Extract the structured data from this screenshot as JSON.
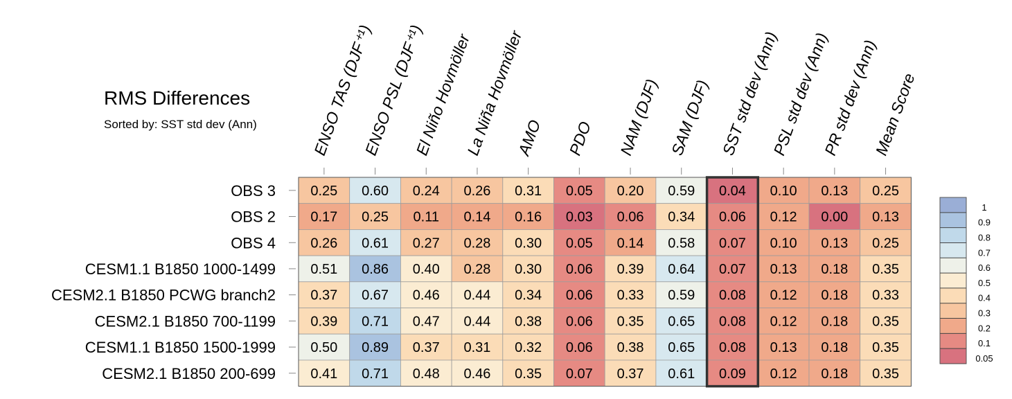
{
  "chart_data": {
    "type": "heatmap",
    "title": "RMS Differences",
    "subtitle": "Sorted by: SST std dev (Ann)",
    "columns": [
      "ENSO TAS (DJF⁺¹)",
      "ENSO PSL (DJF⁺¹)",
      "El Niño Hovmöller",
      "La Niña Hovmöller",
      "AMO",
      "PDO",
      "NAM (DJF)",
      "SAM (DJF)",
      "SST std dev (Ann)",
      "PSL std dev (Ann)",
      "PR std dev (Ann)",
      "Mean Score"
    ],
    "rows": [
      "OBS 3",
      "OBS 2",
      "OBS 4",
      "CESM1.1 B1850 1000-1499",
      "CESM2.1 B1850 PCWG branch2",
      "CESM2.1 B1850 700-1199",
      "CESM1.1 B1850 1500-1999",
      "CESM2.1 B1850 200-699"
    ],
    "values": [
      [
        "0.25",
        "0.60",
        "0.24",
        "0.26",
        "0.31",
        "0.05",
        "0.20",
        "0.59",
        "0.04",
        "0.10",
        "0.13",
        "0.25"
      ],
      [
        "0.17",
        "0.25",
        "0.11",
        "0.14",
        "0.16",
        "0.03",
        "0.06",
        "0.34",
        "0.06",
        "0.12",
        "0.00",
        "0.13"
      ],
      [
        "0.26",
        "0.61",
        "0.27",
        "0.28",
        "0.30",
        "0.05",
        "0.14",
        "0.58",
        "0.07",
        "0.10",
        "0.13",
        "0.25"
      ],
      [
        "0.51",
        "0.86",
        "0.40",
        "0.28",
        "0.30",
        "0.06",
        "0.39",
        "0.64",
        "0.07",
        "0.13",
        "0.18",
        "0.35"
      ],
      [
        "0.37",
        "0.67",
        "0.46",
        "0.44",
        "0.34",
        "0.06",
        "0.33",
        "0.59",
        "0.08",
        "0.12",
        "0.18",
        "0.33"
      ],
      [
        "0.39",
        "0.71",
        "0.47",
        "0.44",
        "0.38",
        "0.06",
        "0.35",
        "0.65",
        "0.08",
        "0.12",
        "0.18",
        "0.35"
      ],
      [
        "0.50",
        "0.89",
        "0.37",
        "0.31",
        "0.32",
        "0.06",
        "0.38",
        "0.65",
        "0.08",
        "0.13",
        "0.18",
        "0.35"
      ],
      [
        "0.41",
        "0.71",
        "0.48",
        "0.46",
        "0.35",
        "0.07",
        "0.37",
        "0.61",
        "0.09",
        "0.12",
        "0.18",
        "0.35"
      ]
    ],
    "sorted_by_column": "SST std dev (Ann)",
    "colorbar": {
      "levels": [
        "1",
        "0.9",
        "0.8",
        "0.7",
        "0.6",
        "0.5",
        "0.4",
        "0.3",
        "0.2",
        "0.1",
        "0.05"
      ],
      "colors": [
        "#9aaed6",
        "#aac3e0",
        "#c0d9ea",
        "#d7e8ef",
        "#eef1e9",
        "#fbecd2",
        "#fbdcb7",
        "#f7c6a0",
        "#f0a98a",
        "#e68a83",
        "#d8727f"
      ]
    }
  }
}
